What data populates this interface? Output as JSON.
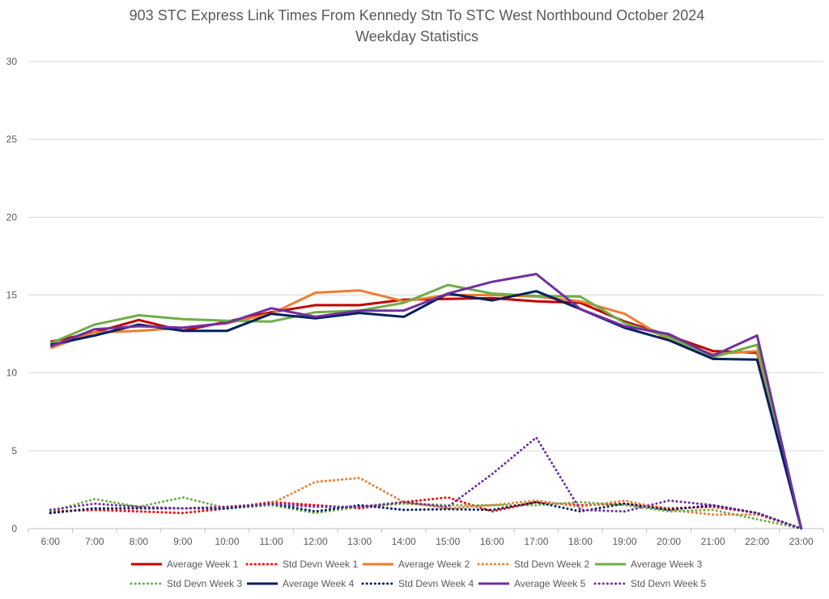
{
  "chart_data": {
    "type": "line",
    "title": "903 STC Express Link Times From Kennedy Stn To STC West Northbound October 2024",
    "subtitle": "Weekday Statistics",
    "xlabel": "",
    "ylabel": "",
    "ylim": [
      0,
      30
    ],
    "yticks": [
      0,
      5,
      10,
      15,
      20,
      25,
      30
    ],
    "grid": true,
    "legend_position": "bottom",
    "categories": [
      "6:00",
      "7:00",
      "8:00",
      "9:00",
      "10:00",
      "11:00",
      "12:00",
      "13:00",
      "14:00",
      "15:00",
      "16:00",
      "17:00",
      "18:00",
      "19:00",
      "20:00",
      "21:00",
      "22:00",
      "23:00"
    ],
    "series": [
      {
        "name": "Average Week 1",
        "style": "solid",
        "color": "#c00000",
        "values": [
          12.0,
          12.6,
          13.4,
          12.7,
          13.3,
          13.9,
          14.35,
          14.35,
          14.7,
          14.75,
          14.8,
          14.6,
          14.5,
          13.3,
          12.4,
          11.4,
          11.3,
          0
        ]
      },
      {
        "name": "Std Devn Week 1",
        "style": "dotted",
        "color": "#ff0000",
        "values": [
          1.1,
          1.2,
          1.1,
          1.0,
          1.3,
          1.7,
          1.5,
          1.3,
          1.7,
          2.0,
          1.1,
          1.7,
          1.5,
          1.6,
          1.3,
          1.4,
          1.0,
          0
        ]
      },
      {
        "name": "Average Week 2",
        "style": "solid",
        "color": "#ed7d31",
        "values": [
          11.6,
          12.6,
          12.7,
          12.9,
          13.2,
          13.8,
          15.15,
          15.3,
          14.6,
          15.0,
          15.0,
          14.9,
          14.6,
          13.8,
          12.1,
          11.2,
          11.4,
          0
        ]
      },
      {
        "name": "Std Devn Week 2",
        "style": "dotted",
        "color": "#ed7d31",
        "values": [
          1.0,
          1.3,
          1.3,
          1.3,
          1.4,
          1.6,
          3.0,
          3.25,
          1.7,
          1.3,
          1.5,
          1.8,
          1.4,
          1.8,
          1.2,
          0.9,
          0.9,
          0
        ]
      },
      {
        "name": "Average Week 3",
        "style": "solid",
        "color": "#70ad47",
        "values": [
          11.9,
          13.1,
          13.7,
          13.45,
          13.35,
          13.3,
          13.9,
          14.0,
          14.5,
          15.65,
          15.1,
          14.95,
          14.9,
          13.2,
          12.3,
          11.0,
          11.8,
          0
        ]
      },
      {
        "name": "Std Devn Week 3",
        "style": "dotted",
        "color": "#70ad47",
        "values": [
          1.1,
          1.9,
          1.4,
          2.0,
          1.3,
          1.5,
          1.0,
          1.4,
          1.6,
          1.5,
          1.5,
          1.5,
          1.7,
          1.5,
          1.1,
          1.2,
          0.6,
          0
        ]
      },
      {
        "name": "Average Week 4",
        "style": "solid",
        "color": "#002060",
        "values": [
          11.8,
          12.4,
          13.1,
          12.7,
          12.7,
          13.8,
          13.5,
          13.85,
          13.6,
          15.1,
          14.65,
          15.25,
          14.1,
          12.9,
          12.1,
          10.9,
          10.85,
          0
        ]
      },
      {
        "name": "Std Devn Week 4",
        "style": "dotted",
        "color": "#002060",
        "values": [
          1.0,
          1.3,
          1.3,
          1.3,
          1.3,
          1.6,
          1.1,
          1.5,
          1.2,
          1.25,
          1.2,
          1.7,
          1.1,
          1.6,
          1.2,
          1.5,
          1.0,
          0
        ]
      },
      {
        "name": "Average Week 5",
        "style": "solid",
        "color": "#7030a0",
        "values": [
          11.7,
          12.8,
          13.0,
          12.9,
          13.2,
          14.15,
          13.6,
          14.0,
          14.0,
          15.1,
          15.85,
          16.35,
          14.1,
          13.0,
          12.5,
          11.1,
          12.4,
          0
        ]
      },
      {
        "name": "Std Devn Week 5",
        "style": "dotted",
        "color": "#7030a0",
        "values": [
          1.2,
          1.6,
          1.4,
          1.3,
          1.4,
          1.6,
          1.4,
          1.4,
          1.7,
          1.4,
          3.5,
          5.85,
          1.2,
          1.1,
          1.8,
          1.5,
          1.0,
          0
        ]
      }
    ]
  }
}
